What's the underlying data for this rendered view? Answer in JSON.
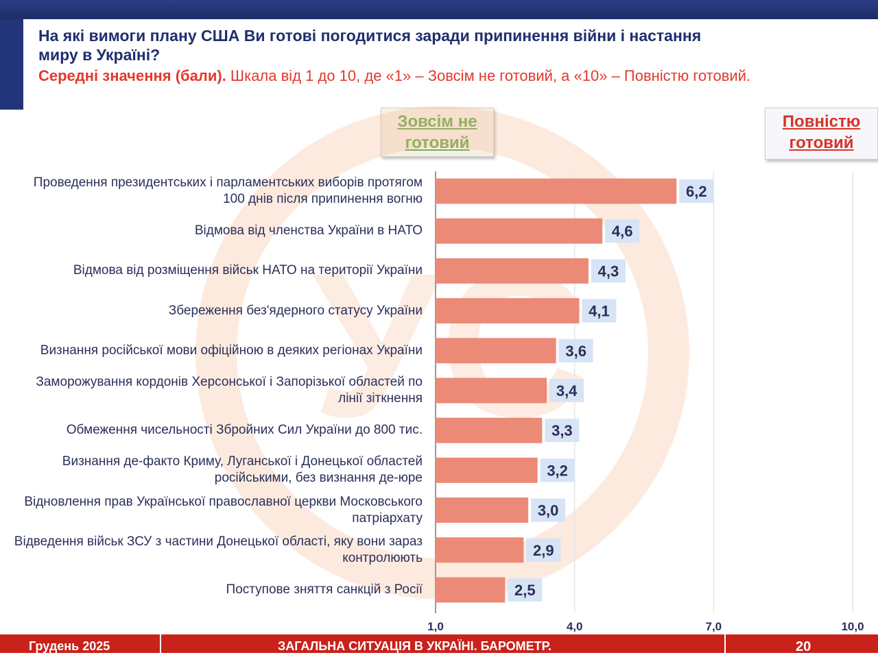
{
  "question": "На які вимоги плану США Ви готові погодитися заради припинення війни і настання миру в Україні?",
  "subtitle_bold": "Середні значення (бали).",
  "subtitle_rest": " Шкала від 1 до 10, де «1» – Зовсім не готовий, а «10» – Повністю готовий.",
  "legend": {
    "left": "Зовсім не готовий",
    "right": "Повністю готовий"
  },
  "footer": {
    "date": "Грудень 2025",
    "title": "ЗАГАЛЬНА СИТУАЦІЯ В УКРАЇНІ. БАРОМЕТР.",
    "page": "20"
  },
  "watermark_text": "УС",
  "colors": {
    "bar": "#ec8a78",
    "label_bg": "#d6e4f5",
    "text": "#2a2f5a",
    "accent_red": "#e2392d",
    "navy": "#1f2f6e"
  },
  "chart_data": {
    "type": "bar",
    "orientation": "horizontal",
    "xlim": [
      1,
      10
    ],
    "ticks": [
      "1,0",
      "4,0",
      "7,0",
      "10,0"
    ],
    "tick_values": [
      1,
      4,
      7,
      10
    ],
    "categories": [
      "Проведення президентських і парламентських виборів протягом 100 днів після припинення вогню",
      "Відмова від членства України в НАТО",
      "Відмова від розміщення військ НАТО на території України",
      "Збереження без'ядерного статусу України",
      "Визнання російської мови офіційною в деяких регіонах України",
      "Заморожування кордонів Херсонської і Запорізької областей по лінії зіткнення",
      "Обмеження чисельності Збройних Сил України до 800 тис.",
      "Визнання де-факто Криму, Луганської і Донецької областей російськими, без визнання де-юре",
      "Відновлення прав Української православної церкви Московського патріархату",
      "Відведення військ ЗСУ з частини Донецької області, яку вони зараз контролюють",
      "Поступове зняття санкцій з Росії"
    ],
    "values": [
      6.2,
      4.6,
      4.3,
      4.1,
      3.6,
      3.4,
      3.3,
      3.2,
      3.0,
      2.9,
      2.5
    ],
    "value_labels": [
      "6,2",
      "4,6",
      "4,3",
      "4,1",
      "3,6",
      "3,4",
      "3,3",
      "3,2",
      "3,0",
      "2,9",
      "2,5"
    ]
  }
}
